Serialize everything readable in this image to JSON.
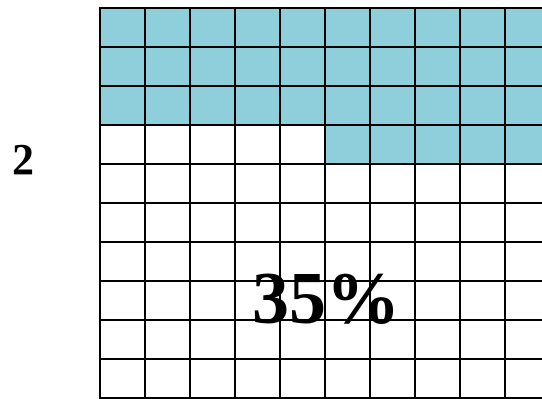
{
  "side_label": "2",
  "percent_label": "35%",
  "grid": {
    "rows": 10,
    "cols": 10,
    "shaded_count": 35,
    "shade_color": "#8ecfdb",
    "line_color": "#000000"
  }
}
